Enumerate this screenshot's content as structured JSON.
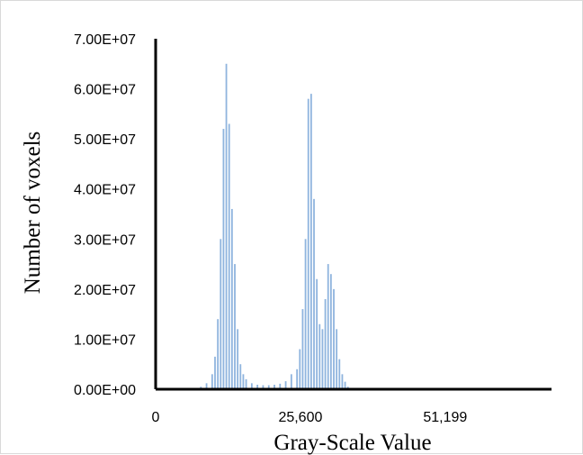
{
  "chart_data": {
    "type": "bar",
    "title": "",
    "xlabel": "Gray-Scale Value",
    "ylabel": "Number of voxels",
    "xlim": [
      0,
      70000
    ],
    "ylim": [
      0,
      70000000
    ],
    "grid": false,
    "legend": "none",
    "bar_color": "#8fb4de",
    "y_tick_values": [
      0,
      10000000,
      20000000,
      30000000,
      40000000,
      50000000,
      60000000,
      70000000
    ],
    "y_tick_labels": [
      "0.00E+00",
      "1.00E+07",
      "2.00E+07",
      "3.00E+07",
      "4.00E+07",
      "5.00E+07",
      "6.00E+07",
      "7.00E+07"
    ],
    "x_tick_values": [
      0,
      25600,
      51199
    ],
    "x_tick_labels": [
      "0",
      "25,600",
      "51,199"
    ],
    "x": [
      7000,
      8000,
      9000,
      10000,
      10500,
      11000,
      11500,
      12000,
      12500,
      13000,
      13500,
      14000,
      14500,
      15000,
      15500,
      16000,
      17000,
      18000,
      19000,
      20000,
      21000,
      22000,
      23000,
      24000,
      25000,
      25500,
      26000,
      26500,
      27000,
      27500,
      28000,
      28500,
      29000,
      29500,
      30000,
      30500,
      31000,
      31500,
      32000,
      32500,
      33000,
      33500,
      34000
    ],
    "values": [
      200000,
      500000,
      1200000,
      3000000,
      6500000,
      14000000,
      30000000,
      52000000,
      65000000,
      53000000,
      36000000,
      25000000,
      12000000,
      5000000,
      3000000,
      2000000,
      1200000,
      900000,
      800000,
      800000,
      900000,
      1100000,
      1600000,
      3000000,
      4000000,
      8000000,
      16000000,
      30000000,
      58000000,
      59000000,
      38000000,
      22000000,
      13000000,
      12000000,
      18000000,
      25000000,
      23000000,
      20000000,
      12000000,
      6000000,
      3000000,
      1500000,
      500000
    ]
  }
}
